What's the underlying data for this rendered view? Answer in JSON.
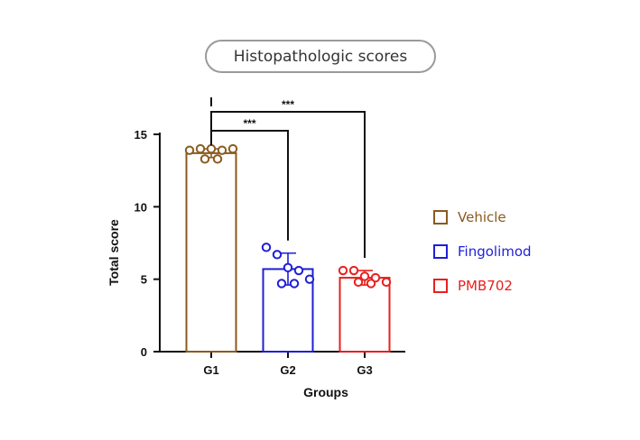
{
  "chart_data": {
    "type": "bar",
    "title": "Histopathologic scores",
    "xlabel": "Groups",
    "ylabel": "Total score",
    "ylim": [
      0,
      15
    ],
    "yticks": [
      0,
      5,
      10,
      15
    ],
    "categories": [
      "G1",
      "G2",
      "G3"
    ],
    "values": [
      13.7,
      5.7,
      5.1
    ],
    "errors": [
      0.3,
      1.1,
      0.5
    ],
    "points": [
      [
        13.9,
        14.0,
        14.0,
        13.9,
        14.0,
        13.3,
        13.3
      ],
      [
        7.2,
        6.7,
        5.8,
        5.6,
        5.0,
        4.7,
        4.7
      ],
      [
        5.6,
        5.6,
        5.2,
        5.1,
        4.8,
        4.8,
        4.7
      ]
    ],
    "series": [
      {
        "name": "Vehicle",
        "color": "#8B5A1E"
      },
      {
        "name": "Fingolimod",
        "color": "#1F1FD6"
      },
      {
        "name": "PMB702",
        "color": "#E8201E"
      }
    ],
    "significance": [
      {
        "from": "G1",
        "to": "G2",
        "label": "***"
      },
      {
        "from": "G1",
        "to": "G3",
        "label": "***"
      }
    ],
    "legend_position": "right"
  }
}
